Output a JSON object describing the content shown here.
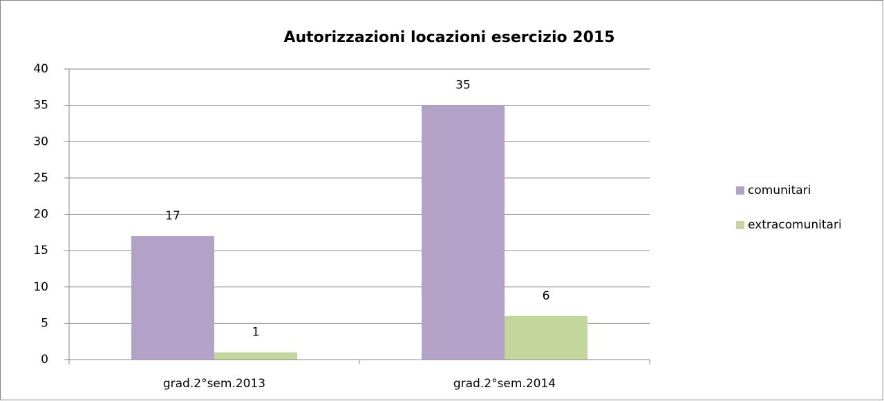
{
  "chart_data": {
    "type": "bar",
    "title": "Autorizzazioni locazioni esercizio 2015",
    "categories": [
      "grad.2°sem.2013",
      "grad.2°sem.2014"
    ],
    "series": [
      {
        "name": "comunitari",
        "color": "#b3a2c7",
        "values": [
          17,
          35
        ]
      },
      {
        "name": "extracomunitari",
        "color": "#c3d69b",
        "values": [
          1,
          6
        ]
      }
    ],
    "ylim": [
      0,
      40
    ],
    "yticks": [
      0,
      5,
      10,
      15,
      20,
      25,
      30,
      35,
      40
    ],
    "grid": true,
    "legend": "right"
  }
}
